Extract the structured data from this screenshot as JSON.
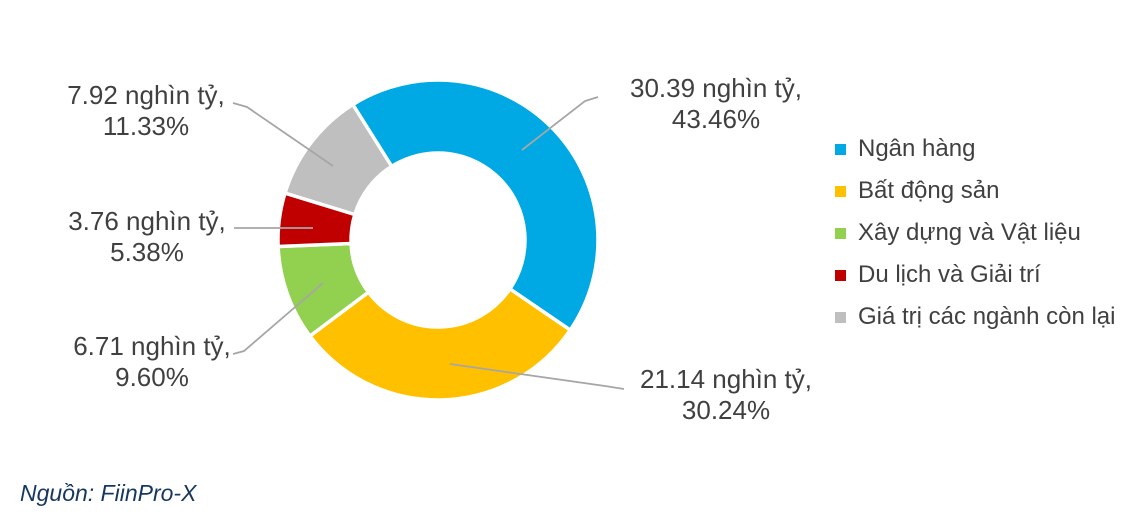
{
  "chart_data": {
    "type": "pie",
    "subtype": "donut",
    "title": "",
    "unit": "nghìn tỷ",
    "start_angle_deg": -32.2,
    "donut_hole_ratio": 0.55,
    "legend_position": "right",
    "grid": false,
    "connector_color": "#A6A6A6",
    "text_color": "#404040",
    "slice_border_color": "#FFFFFF",
    "series": [
      {
        "name": "Ngân hàng",
        "value": 30.39,
        "percent": 43.46,
        "color": "#00A9E4",
        "callout_value": "30.39 nghìn tỷ,",
        "callout_percent": "43.46%"
      },
      {
        "name": "Bất động sản",
        "value": 21.14,
        "percent": 30.24,
        "color": "#FFC000",
        "callout_value": "21.14 nghìn tỷ,",
        "callout_percent": "30.24%"
      },
      {
        "name": "Xây dựng và Vật liệu",
        "value": 6.71,
        "percent": 9.6,
        "color": "#92D050",
        "callout_value": "6.71 nghìn tỷ,",
        "callout_percent": "9.60%"
      },
      {
        "name": "Du lịch và Giải trí",
        "value": 3.76,
        "percent": 5.38,
        "color": "#C00000",
        "callout_value": "3.76 nghìn tỷ,",
        "callout_percent": "5.38%"
      },
      {
        "name": "Giá trị các ngành còn lại",
        "value": 7.92,
        "percent": 11.33,
        "color": "#BFBFBF",
        "callout_value": "7.92 nghìn tỷ,",
        "callout_percent": "11.33%"
      }
    ]
  },
  "source": {
    "text": "Nguồn: FiinPro-X",
    "color": "#17375E"
  }
}
